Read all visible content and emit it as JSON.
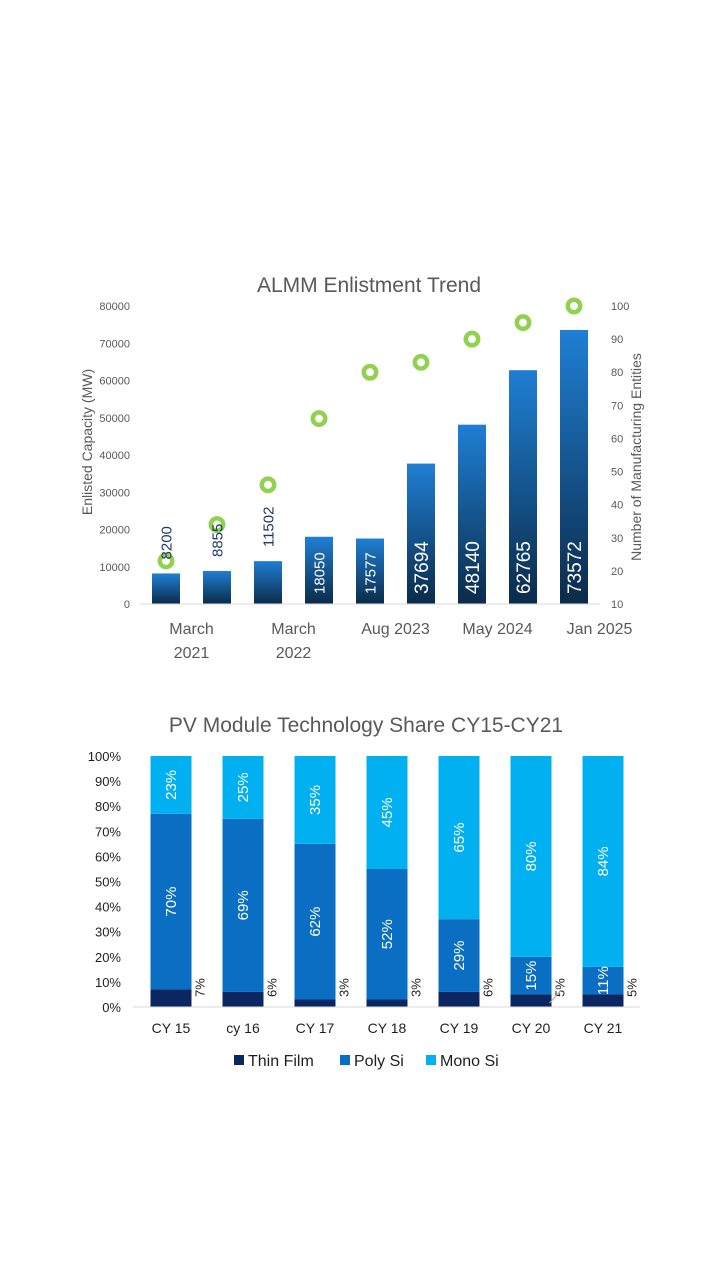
{
  "chart_data": [
    {
      "type": "bar",
      "title": "ALMM Enlistment Trend",
      "ylabel": "Enlisted Capacity (MW)",
      "y2label": "Number of Manufacturing Entities",
      "ylim": [
        0,
        80000
      ],
      "y2lim": [
        10,
        100
      ],
      "yticks": [
        "0",
        "10000",
        "20000",
        "30000",
        "40000",
        "50000",
        "60000",
        "70000",
        "80000"
      ],
      "y2ticks": [
        "10",
        "20",
        "30",
        "40",
        "50",
        "60",
        "70",
        "80",
        "90",
        "100"
      ],
      "x_tick_labels": [
        {
          "lines": [
            "March",
            "2021"
          ],
          "index": 0.5
        },
        {
          "lines": [
            "March",
            "2022"
          ],
          "index": 2.5
        },
        {
          "lines": [
            "Aug 2023"
          ],
          "index": 4.5
        },
        {
          "lines": [
            "May 2024"
          ],
          "index": 6.5
        },
        {
          "lines": [
            "Jan 2025"
          ],
          "index": 8.5
        }
      ],
      "series": [
        {
          "type": "bar",
          "values": [
            8200,
            8855,
            11502,
            18050,
            17577,
            37694,
            48140,
            62765,
            73572
          ],
          "labels": [
            "8200",
            "8855",
            "11502",
            "18050",
            "17577",
            "37694",
            "48140",
            "62765",
            "73572"
          ]
        },
        {
          "type": "scatter",
          "axis": "right",
          "values": [
            23,
            34,
            46,
            66,
            80,
            83,
            90,
            95,
            100
          ]
        }
      ],
      "colors": {
        "bar_top": "#1f7fd4",
        "bar_bottom": "#0b2b49",
        "marker": "#92d050",
        "label_dark": "#1f3864"
      },
      "grid": false
    },
    {
      "type": "bar",
      "stacked": true,
      "title": "PV Module Technology Share CY15-CY21",
      "categories": [
        "CY 15",
        "cy 16",
        "CY 17",
        "CY 18",
        "CY 19",
        "CY 20",
        "CY 21"
      ],
      "yticks": [
        "0%",
        "10%",
        "20%",
        "30%",
        "40%",
        "50%",
        "60%",
        "70%",
        "80%",
        "90%",
        "100%"
      ],
      "ylim": [
        0,
        100
      ],
      "series": [
        {
          "name": "Thin Film",
          "values": [
            7,
            6,
            3,
            3,
            6,
            5,
            5
          ],
          "labels": [
            "7%",
            "6%",
            "3%",
            "3%",
            "6%",
            "5%",
            "5%"
          ],
          "color": "#0a2762"
        },
        {
          "name": "Poly Si",
          "values": [
            70,
            69,
            62,
            52,
            29,
            15,
            11
          ],
          "labels": [
            "70%",
            "69%",
            "62%",
            "52%",
            "29%",
            "15%",
            "11%"
          ],
          "color": "#0a6fc2"
        },
        {
          "name": "Mono Si",
          "values": [
            23,
            25,
            35,
            45,
            65,
            80,
            84
          ],
          "labels": [
            "23%",
            "25%",
            "35%",
            "45%",
            "65%",
            "80%",
            "84%"
          ],
          "color": "#00b0f0"
        }
      ],
      "legend": "bottom",
      "grid": false
    }
  ]
}
